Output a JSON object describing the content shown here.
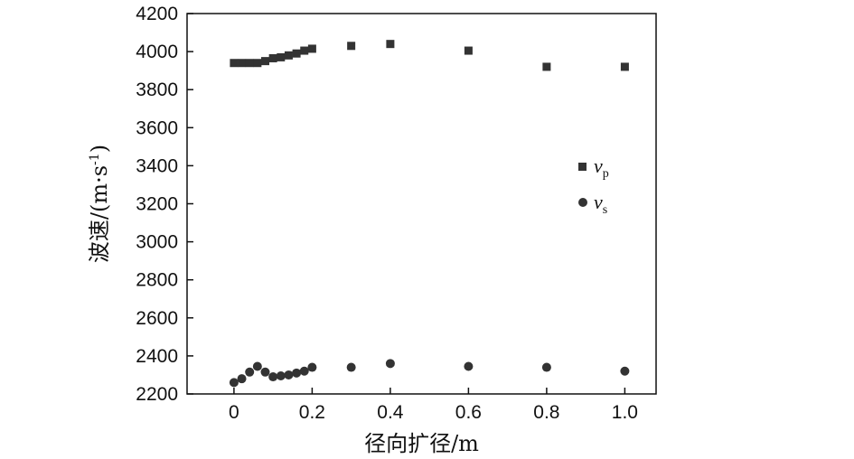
{
  "chart_data": {
    "type": "scatter",
    "title": "",
    "xlabel": "径向扩径/m",
    "ylabel": "波速/(m·s-1)",
    "ylabel_parts": {
      "main": "波速/(m·s",
      "sup": "-1",
      "tail": ")"
    },
    "xlim": [
      -0.12,
      1.08
    ],
    "ylim": [
      2200,
      4200
    ],
    "xticks": [
      0,
      0.2,
      0.4,
      0.6,
      0.8,
      1.0
    ],
    "xtick_labels": [
      "0",
      "0.2",
      "0.4",
      "0.6",
      "0.8",
      "1.0"
    ],
    "yticks": [
      2200,
      2400,
      2600,
      2800,
      3000,
      3200,
      3400,
      3600,
      3800,
      4000,
      4200
    ],
    "ytick_labels": [
      "2200",
      "2400",
      "2600",
      "2800",
      "3000",
      "3200",
      "3400",
      "3600",
      "3800",
      "4000",
      "4200"
    ],
    "grid": false,
    "legend_placement": "right-middle",
    "series": [
      {
        "name": "vp",
        "label_main": "v",
        "label_sub": "p",
        "marker": "square",
        "color": "#333333",
        "x": [
          0,
          0.02,
          0.04,
          0.06,
          0.08,
          0.1,
          0.12,
          0.14,
          0.16,
          0.18,
          0.2,
          0.3,
          0.4,
          0.6,
          0.8,
          1.0
        ],
        "y": [
          3940,
          3940,
          3940,
          3940,
          3950,
          3965,
          3970,
          3980,
          3990,
          4005,
          4015,
          4030,
          4040,
          4005,
          3920,
          3920
        ]
      },
      {
        "name": "vs",
        "label_main": "v",
        "label_sub": "s",
        "marker": "circle",
        "color": "#333333",
        "x": [
          0,
          0.02,
          0.04,
          0.06,
          0.08,
          0.1,
          0.12,
          0.14,
          0.16,
          0.18,
          0.2,
          0.3,
          0.4,
          0.6,
          0.8,
          1.0
        ],
        "y": [
          2260,
          2280,
          2315,
          2345,
          2315,
          2290,
          2295,
          2300,
          2310,
          2320,
          2340,
          2340,
          2360,
          2345,
          2340,
          2320
        ]
      }
    ]
  }
}
